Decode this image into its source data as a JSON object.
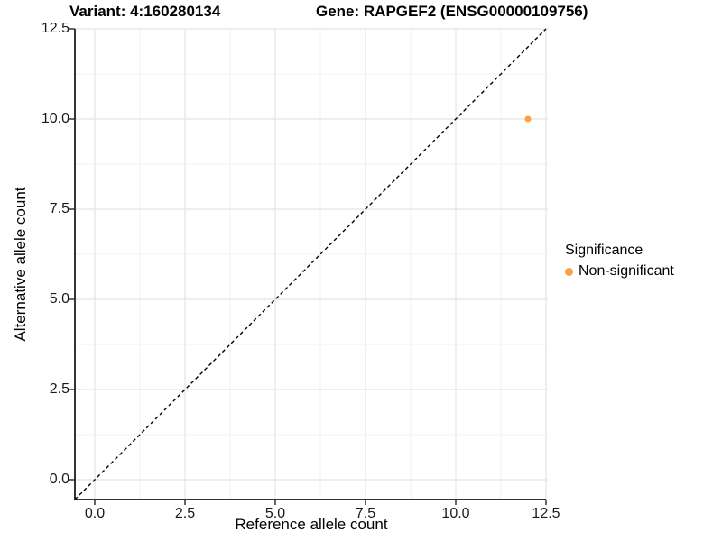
{
  "header": {
    "variant_title": "Variant: 4:160280134",
    "gene_title": "Gene: RAPGEF2 (ENSG00000109756)"
  },
  "legend": {
    "title": "Significance",
    "items": [
      {
        "label": "Non-significant",
        "color": "#F9A242"
      }
    ]
  },
  "chart_data": {
    "type": "scatter",
    "title": "Variant: 4:160280134    Gene: RAPGEF2 (ENSG00000109756)",
    "xlabel": "Reference allele count",
    "ylabel": "Alternative allele count",
    "x_ticks": [
      0,
      2.5,
      5,
      7.5,
      10,
      12.5
    ],
    "y_ticks": [
      0,
      2.5,
      5,
      7.5,
      10,
      12.5
    ],
    "x_tick_labels": [
      "0.0",
      "2.5",
      "5.0",
      "7.5",
      "10.0",
      "12.5"
    ],
    "y_tick_labels": [
      "0.0",
      "2.5",
      "5.0",
      "7.5",
      "10.0",
      "12.5"
    ],
    "xlim": [
      -0.55,
      13.1
    ],
    "ylim": [
      -0.55,
      13.05
    ],
    "grid": "major+minor",
    "legend_position": "right",
    "reference_line": {
      "type": "identity y=x",
      "style": "dashed",
      "color": "#000000"
    },
    "series": [
      {
        "name": "Non-significant",
        "color": "#F9A242",
        "points": [
          {
            "x": 12,
            "y": 10
          }
        ]
      }
    ]
  }
}
